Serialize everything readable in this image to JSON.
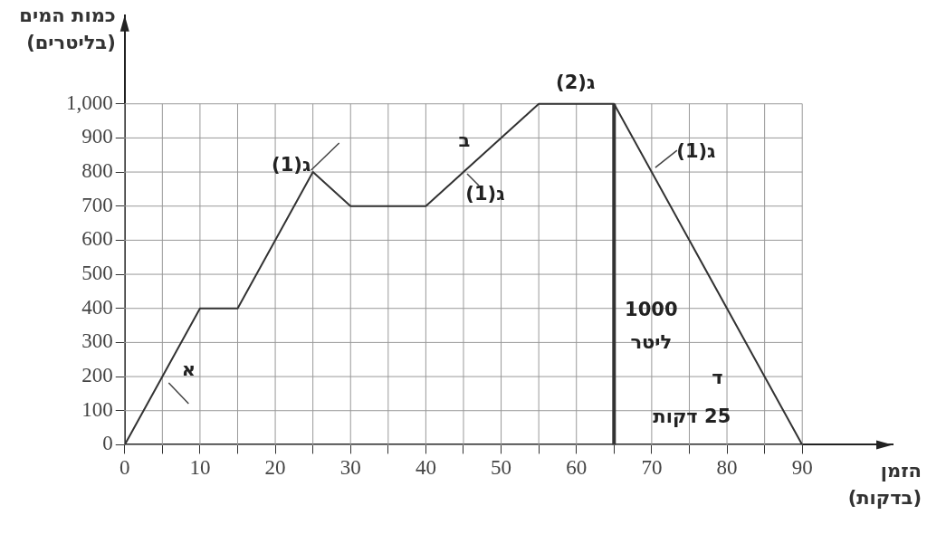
{
  "chart_data": {
    "type": "line",
    "xlabel": "הזמן (בדקות)",
    "ylabel": "כמות המים (בליטרים)",
    "x": [
      0,
      10,
      15,
      25,
      30,
      40,
      55,
      65,
      90
    ],
    "series": [
      {
        "color": "#333333",
        "values": [
          0,
          400,
          400,
          800,
          700,
          700,
          1000,
          1000,
          0
        ]
      }
    ],
    "xlim": [
      0,
      102
    ],
    "ylim": [
      0,
      1260
    ],
    "xticks": [
      0,
      {
        "value": 5,
        "label": null
      },
      10,
      {
        "value": 15,
        "label": null
      },
      20,
      {
        "value": 25,
        "label": null
      },
      30,
      {
        "value": 35,
        "label": null
      },
      40,
      {
        "value": 45,
        "label": null
      },
      50,
      {
        "value": 55,
        "label": null
      },
      60,
      {
        "value": 65,
        "label": null
      },
      70,
      {
        "value": 75,
        "label": null
      },
      80,
      {
        "value": 85,
        "label": null
      },
      90
    ],
    "yticks": [
      0,
      100,
      200,
      300,
      400,
      500,
      600,
      700,
      800,
      900,
      {
        "value": 1000,
        "label": "1,000"
      }
    ],
    "grid": true,
    "legend": false,
    "marker": "none",
    "line_style": "solid",
    "ref_lines": [
      {
        "axis": "x",
        "value": 65,
        "color": "#333333"
      }
    ],
    "annotations": [
      {
        "text": "א",
        "x": 5,
        "y": 200
      },
      {
        "text": "ג(1)",
        "x": 25,
        "y": 800
      },
      {
        "text": "ב",
        "x": 45,
        "y": 800
      },
      {
        "text": "ג(1)",
        "x": 45,
        "y": 800
      },
      {
        "text": "ג(2)",
        "x": 60,
        "y": 1000
      },
      {
        "text": "ג(1)",
        "x": 70,
        "y": 800
      },
      "1000 ליטר",
      "ד",
      "25 דקות"
    ]
  }
}
